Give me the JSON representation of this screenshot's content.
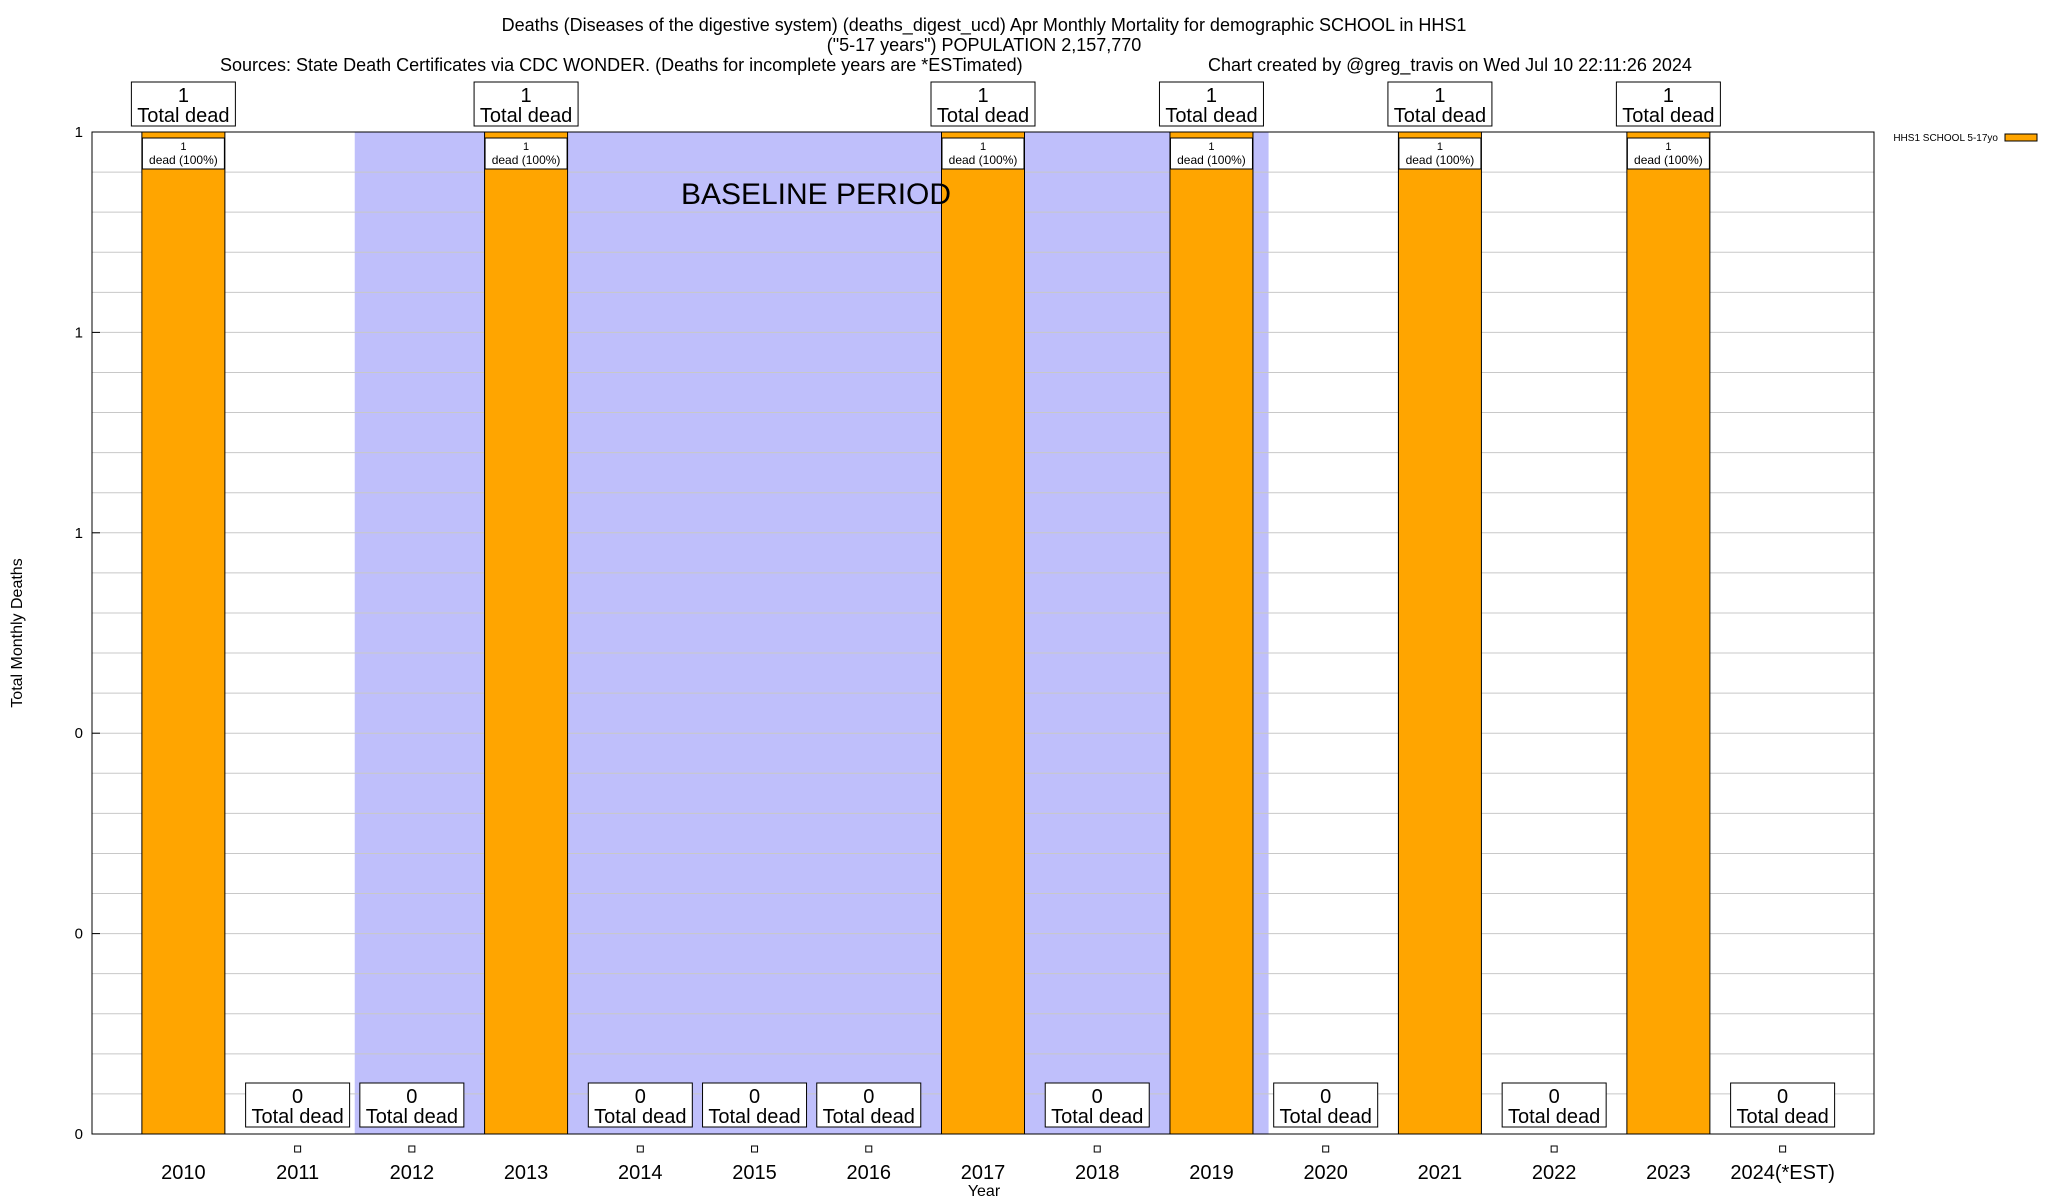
{
  "chart_data": {
    "type": "bar",
    "title": "Deaths (Diseases of the digestive system) (deaths_digest_ucd) Apr Monthly Mortality for demographic SCHOOL in HHS1",
    "subtitle": "(\"5-17 years\") POPULATION 2,157,770",
    "sources": "Sources: State Death Certificates via CDC WONDER. (Deaths for incomplete years are *ESTimated)",
    "credit": "Chart created by @greg_travis on Wed Jul 10 22:11:26 2024",
    "xlabel": "Year",
    "ylabel": "Total Monthly Deaths",
    "ylim": [
      0,
      1
    ],
    "ytick_labels": [
      "0",
      "0",
      "0",
      "1",
      "1",
      "1"
    ],
    "baseline_label": "BASELINE PERIOD",
    "baseline_range": [
      "2012",
      "2019"
    ],
    "baseline_color": "#bfbffb",
    "bar_color": "#ffa500",
    "grid": true,
    "legend_placement": "top-right",
    "categories": [
      "2010",
      "2011",
      "2012",
      "2013",
      "2014",
      "2015",
      "2016",
      "2017",
      "2018",
      "2019",
      "2020",
      "2021",
      "2022",
      "2023",
      "2024(*EST)"
    ],
    "series": [
      {
        "name": "HHS1 SCHOOL 5-17yo",
        "values": [
          1,
          0,
          0,
          1,
          0,
          0,
          0,
          1,
          0,
          1,
          0,
          1,
          0,
          1,
          0
        ]
      }
    ],
    "total_label_suffix": "Total dead",
    "segment_labels": [
      "1",
      "dead (100%)"
    ]
  }
}
